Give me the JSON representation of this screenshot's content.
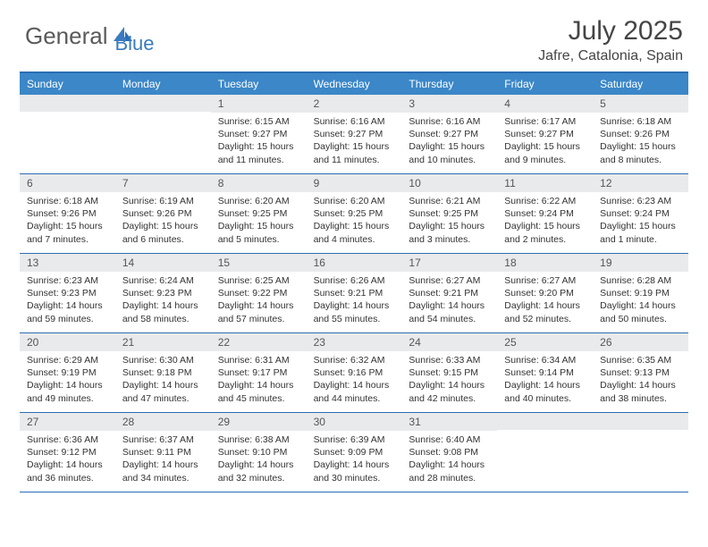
{
  "logo": {
    "part1": "General",
    "part2": "Blue"
  },
  "title": "July 2025",
  "location": "Jafre, Catalonia, Spain",
  "colors": {
    "header_bg": "#3b87c8",
    "border": "#2a6db3",
    "daynum_bg": "#e9eaeb",
    "logo_gray": "#5a5a5a",
    "logo_blue": "#3b7bbf",
    "text": "#333333"
  },
  "day_names": [
    "Sunday",
    "Monday",
    "Tuesday",
    "Wednesday",
    "Thursday",
    "Friday",
    "Saturday"
  ],
  "weeks": [
    [
      {
        "day": null
      },
      {
        "day": null
      },
      {
        "day": 1,
        "sunrise": "6:15 AM",
        "sunset": "9:27 PM",
        "daylight": "15 hours and 11 minutes."
      },
      {
        "day": 2,
        "sunrise": "6:16 AM",
        "sunset": "9:27 PM",
        "daylight": "15 hours and 11 minutes."
      },
      {
        "day": 3,
        "sunrise": "6:16 AM",
        "sunset": "9:27 PM",
        "daylight": "15 hours and 10 minutes."
      },
      {
        "day": 4,
        "sunrise": "6:17 AM",
        "sunset": "9:27 PM",
        "daylight": "15 hours and 9 minutes."
      },
      {
        "day": 5,
        "sunrise": "6:18 AM",
        "sunset": "9:26 PM",
        "daylight": "15 hours and 8 minutes."
      }
    ],
    [
      {
        "day": 6,
        "sunrise": "6:18 AM",
        "sunset": "9:26 PM",
        "daylight": "15 hours and 7 minutes."
      },
      {
        "day": 7,
        "sunrise": "6:19 AM",
        "sunset": "9:26 PM",
        "daylight": "15 hours and 6 minutes."
      },
      {
        "day": 8,
        "sunrise": "6:20 AM",
        "sunset": "9:25 PM",
        "daylight": "15 hours and 5 minutes."
      },
      {
        "day": 9,
        "sunrise": "6:20 AM",
        "sunset": "9:25 PM",
        "daylight": "15 hours and 4 minutes."
      },
      {
        "day": 10,
        "sunrise": "6:21 AM",
        "sunset": "9:25 PM",
        "daylight": "15 hours and 3 minutes."
      },
      {
        "day": 11,
        "sunrise": "6:22 AM",
        "sunset": "9:24 PM",
        "daylight": "15 hours and 2 minutes."
      },
      {
        "day": 12,
        "sunrise": "6:23 AM",
        "sunset": "9:24 PM",
        "daylight": "15 hours and 1 minute."
      }
    ],
    [
      {
        "day": 13,
        "sunrise": "6:23 AM",
        "sunset": "9:23 PM",
        "daylight": "14 hours and 59 minutes."
      },
      {
        "day": 14,
        "sunrise": "6:24 AM",
        "sunset": "9:23 PM",
        "daylight": "14 hours and 58 minutes."
      },
      {
        "day": 15,
        "sunrise": "6:25 AM",
        "sunset": "9:22 PM",
        "daylight": "14 hours and 57 minutes."
      },
      {
        "day": 16,
        "sunrise": "6:26 AM",
        "sunset": "9:21 PM",
        "daylight": "14 hours and 55 minutes."
      },
      {
        "day": 17,
        "sunrise": "6:27 AM",
        "sunset": "9:21 PM",
        "daylight": "14 hours and 54 minutes."
      },
      {
        "day": 18,
        "sunrise": "6:27 AM",
        "sunset": "9:20 PM",
        "daylight": "14 hours and 52 minutes."
      },
      {
        "day": 19,
        "sunrise": "6:28 AM",
        "sunset": "9:19 PM",
        "daylight": "14 hours and 50 minutes."
      }
    ],
    [
      {
        "day": 20,
        "sunrise": "6:29 AM",
        "sunset": "9:19 PM",
        "daylight": "14 hours and 49 minutes."
      },
      {
        "day": 21,
        "sunrise": "6:30 AM",
        "sunset": "9:18 PM",
        "daylight": "14 hours and 47 minutes."
      },
      {
        "day": 22,
        "sunrise": "6:31 AM",
        "sunset": "9:17 PM",
        "daylight": "14 hours and 45 minutes."
      },
      {
        "day": 23,
        "sunrise": "6:32 AM",
        "sunset": "9:16 PM",
        "daylight": "14 hours and 44 minutes."
      },
      {
        "day": 24,
        "sunrise": "6:33 AM",
        "sunset": "9:15 PM",
        "daylight": "14 hours and 42 minutes."
      },
      {
        "day": 25,
        "sunrise": "6:34 AM",
        "sunset": "9:14 PM",
        "daylight": "14 hours and 40 minutes."
      },
      {
        "day": 26,
        "sunrise": "6:35 AM",
        "sunset": "9:13 PM",
        "daylight": "14 hours and 38 minutes."
      }
    ],
    [
      {
        "day": 27,
        "sunrise": "6:36 AM",
        "sunset": "9:12 PM",
        "daylight": "14 hours and 36 minutes."
      },
      {
        "day": 28,
        "sunrise": "6:37 AM",
        "sunset": "9:11 PM",
        "daylight": "14 hours and 34 minutes."
      },
      {
        "day": 29,
        "sunrise": "6:38 AM",
        "sunset": "9:10 PM",
        "daylight": "14 hours and 32 minutes."
      },
      {
        "day": 30,
        "sunrise": "6:39 AM",
        "sunset": "9:09 PM",
        "daylight": "14 hours and 30 minutes."
      },
      {
        "day": 31,
        "sunrise": "6:40 AM",
        "sunset": "9:08 PM",
        "daylight": "14 hours and 28 minutes."
      },
      {
        "day": null
      },
      {
        "day": null
      }
    ]
  ],
  "labels": {
    "sunrise": "Sunrise:",
    "sunset": "Sunset:",
    "daylight": "Daylight:"
  }
}
